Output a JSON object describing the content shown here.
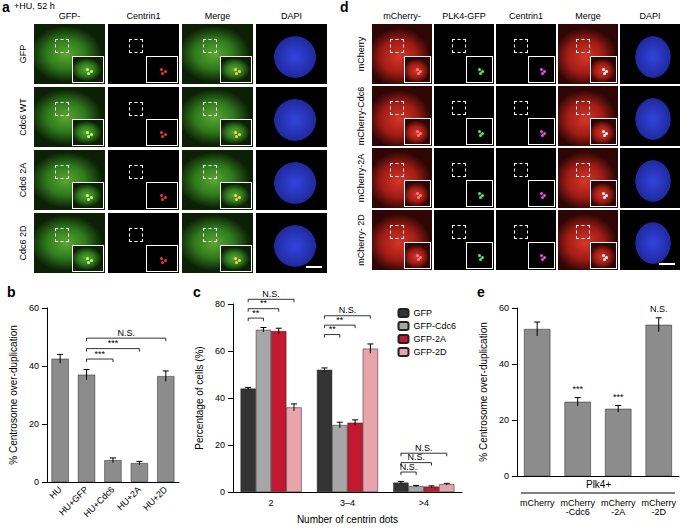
{
  "images": [
    {
      "panel": "a",
      "condition": "+HU, 52 h",
      "columns": [
        "GFP-",
        "Centrin1",
        "Merge",
        "DAPI"
      ],
      "rows": [
        "GFP",
        "Cdc6 WT",
        "Cdc6 2A",
        "Cdc6 2D"
      ]
    },
    {
      "panel": "d",
      "columns": [
        "mCherry-",
        "PLK4-GFP",
        "Centrin1",
        "Merge",
        "DAPI"
      ],
      "rows": [
        "mCherry",
        "mCherry-Cdc6",
        "mCherry-2A",
        "mCherry- 2D"
      ]
    }
  ],
  "chart_data": [
    {
      "panel": "b",
      "type": "bar",
      "ylabel": "% Centrosome over-duplication",
      "categories": [
        "HU",
        "HU+GFP",
        "HU+Cdc6",
        "HU+2A",
        "HU+2D"
      ],
      "values": [
        42.5,
        37,
        7.5,
        6.5,
        36.5
      ],
      "errors": [
        1.5,
        1.8,
        0.8,
        0.6,
        1.8
      ],
      "color": "#8c8c8c",
      "ylim": [
        0,
        60
      ],
      "yticks": [
        0,
        20,
        40,
        60
      ],
      "annotations": [
        {
          "text": "***",
          "from": "HU+GFP",
          "to": "HU+Cdc6"
        },
        {
          "text": "***",
          "from": "HU+GFP",
          "to": "HU+2A"
        },
        {
          "text": "N.S.",
          "from": "HU+GFP",
          "to": "HU+2D"
        }
      ]
    },
    {
      "panel": "c",
      "type": "bar",
      "ylabel": "Percentage of cells (%)",
      "xlabel": "Number of centrin dots",
      "categories": [
        "2",
        "3–4",
        ">4"
      ],
      "series": [
        {
          "name": "GFP",
          "color": "#333333",
          "values": [
            44,
            52,
            4
          ],
          "errors": [
            0.5,
            0.8,
            0.5
          ]
        },
        {
          "name": "GFP-Cdc6",
          "color": "#a6a6a6",
          "values": [
            69,
            28.5,
            2.5
          ],
          "errors": [
            1,
            1.2,
            0.3
          ]
        },
        {
          "name": "GFP-2A",
          "color": "#c4182f",
          "values": [
            68.5,
            29.5,
            2.3
          ],
          "errors": [
            1.2,
            1.2,
            0.3
          ]
        },
        {
          "name": "GFP-2D",
          "color": "#e9a3ab",
          "values": [
            36,
            61,
            3.3
          ],
          "errors": [
            1.5,
            2,
            0.4
          ]
        }
      ],
      "ylim": [
        0,
        80
      ],
      "yticks": [
        0,
        20,
        40,
        60,
        80
      ],
      "legend": "upper right",
      "annotations": [
        {
          "text": "**",
          "category": "2",
          "from": "GFP",
          "to": "GFP-Cdc6"
        },
        {
          "text": "**",
          "category": "2",
          "from": "GFP",
          "to": "GFP-2A"
        },
        {
          "text": "N.S.",
          "category": "2",
          "from": "GFP",
          "to": "GFP-2D"
        },
        {
          "text": "**",
          "category": "3–4",
          "from": "GFP",
          "to": "GFP-Cdc6"
        },
        {
          "text": "**",
          "category": "3–4",
          "from": "GFP",
          "to": "GFP-2A"
        },
        {
          "text": "N.S.",
          "category": "3–4",
          "from": "GFP",
          "to": "GFP-2D"
        },
        {
          "text": "N.S.",
          "category": ">4",
          "from": "GFP",
          "to": "GFP-Cdc6"
        },
        {
          "text": "N.S.",
          "category": ">4",
          "from": "GFP",
          "to": "GFP-2A"
        },
        {
          "text": "N.S.",
          "category": ">4",
          "from": "GFP",
          "to": "GFP-2D"
        }
      ]
    },
    {
      "panel": "e",
      "type": "bar",
      "ylabel": "% Centrosome over-duplication",
      "xlabel": "Plk4+",
      "categories": [
        "mCherry",
        "mCherry\n-Cdc6",
        "mCherry\n-2A",
        "mCherry\n-2D"
      ],
      "values": [
        52.5,
        26.5,
        24,
        54
      ],
      "errors": [
        2.5,
        1.5,
        1.2,
        2.5
      ],
      "color": "#8c8c8c",
      "ylim": [
        0,
        60
      ],
      "yticks": [
        0,
        20,
        40,
        60
      ],
      "annotations": [
        {
          "text": "***",
          "category": "mCherry\n-Cdc6"
        },
        {
          "text": "***",
          "category": "mCherry\n-2A"
        },
        {
          "text": "N.S.",
          "category": "mCherry\n-2D"
        }
      ]
    }
  ]
}
